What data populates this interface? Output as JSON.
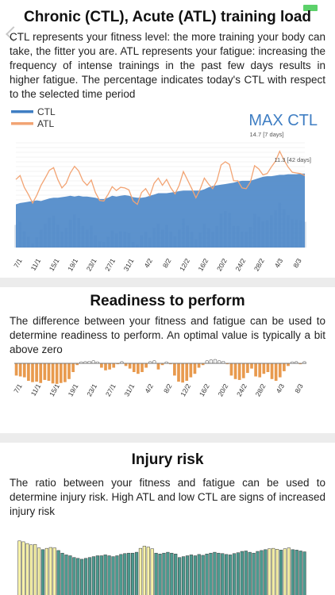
{
  "load_section": {
    "title": "Chronic (CTL), Acute (ATL) training load",
    "description": "CTL represents your fitness level: the more training your body can take, the fitter you are. ATL represents your fatigue: increasing the frequency of intense trainings in the past few days results in higher fatigue. The percentage indicates today's CTL with respect to the selected time period",
    "legend": [
      {
        "label": "CTL",
        "color": "#3f7ec3"
      },
      {
        "label": "ATL",
        "color": "#f2a474"
      }
    ],
    "max_label": "MAX CTL",
    "annotations": [
      "14.7 [7 days]",
      "11.3 [42 days]"
    ]
  },
  "readiness_section": {
    "title": "Readiness to perform",
    "description": "The difference between your fitness and fatigue can be used to determine readiness to perform. An optimal value is typically a bit above zero"
  },
  "injury_section": {
    "title": "Injury risk",
    "description": "The ratio between your fitness and fatigue can be used to determine injury risk. High ATL and low CTL are signs of increased injury risk"
  },
  "colors": {
    "ctl_fill": "#4a86c8",
    "atl_line": "#f2a474",
    "readiness_negative": "#e89a4e",
    "readiness_positive": "#ffffff",
    "injury_high": "#f7f2a8",
    "injury_normal": "#4c9a8f"
  },
  "chart_data": [
    {
      "type": "area",
      "x_tick_labels": [
        "7/1",
        "11/1",
        "15/1",
        "19/1",
        "23/1",
        "27/1",
        "31/1",
        "4/2",
        "8/2",
        "12/2",
        "16/2",
        "20/2",
        "24/2",
        "28/2",
        "4/3",
        "8/3"
      ],
      "series": [
        {
          "name": "CTL",
          "values": [
            6.6,
            6.8,
            6.9,
            7.0,
            7.1,
            7.2,
            7.1,
            7.3,
            7.5,
            7.6,
            7.6,
            7.7,
            7.8,
            7.9,
            7.8,
            7.9,
            7.8,
            7.8,
            7.7,
            7.6,
            7.4,
            7.4,
            7.6,
            7.9,
            7.8,
            7.9,
            8.0,
            7.9,
            7.7,
            7.6,
            7.6,
            7.7,
            7.9,
            8.1,
            8.3,
            8.3,
            8.3,
            8.4,
            8.5,
            8.6,
            8.7,
            8.7,
            8.7,
            8.7,
            8.7,
            8.9,
            9.2,
            9.4,
            9.5,
            9.6,
            9.7,
            9.8,
            9.9,
            10.1,
            10.2,
            10.2,
            10.2,
            10.4,
            10.6,
            10.8,
            10.9,
            10.9,
            11.0,
            11.1,
            11.1,
            11.2,
            11.2,
            11.2,
            11.3,
            11.3
          ]
        },
        {
          "name": "ATL",
          "values": [
            10.4,
            11.0,
            9.2,
            8.1,
            6.8,
            8.0,
            9.5,
            10.6,
            11.8,
            12.2,
            10.4,
            9.1,
            9.8,
            11.4,
            12.4,
            11.7,
            10.2,
            9.5,
            10.3,
            8.4,
            7.2,
            7.1,
            8.1,
            9.3,
            8.7,
            9.2,
            9.1,
            8.8,
            7.1,
            6.6,
            8.4,
            9.0,
            7.9,
            9.8,
            10.6,
            9.5,
            10.4,
            9.1,
            8.2,
            9.5,
            11.6,
            10.3,
            9.0,
            7.6,
            8.9,
            10.6,
            9.7,
            9.0,
            10.2,
            12.6,
            13.1,
            12.7,
            10.2,
            10.2,
            9.1,
            9.0,
            10.0,
            12.5,
            12.0,
            11.1,
            11.3,
            12.3,
            13.2,
            14.7,
            13.4,
            12.3,
            11.5,
            11.4,
            11.3,
            11.0
          ]
        }
      ]
    },
    {
      "type": "bar",
      "x_tick_labels": [
        "7/1",
        "11/1",
        "15/1",
        "19/1",
        "23/1",
        "27/1",
        "31/1",
        "4/2",
        "8/2",
        "12/2",
        "16/2",
        "20/2",
        "24/2",
        "28/2",
        "4/3",
        "8/3"
      ],
      "series": [
        {
          "name": "",
          "values": [
            -0.28,
            -0.3,
            -0.32,
            -0.4,
            -0.43,
            -0.42,
            -0.45,
            -0.38,
            -0.4,
            -0.46,
            -0.47,
            -0.45,
            -0.43,
            -0.36,
            -0.2,
            -0.04,
            0.01,
            0.04,
            0.05,
            0.06,
            0.02,
            -0.1,
            -0.16,
            -0.14,
            -0.1,
            -0.02,
            0.04,
            -0.06,
            -0.12,
            -0.2,
            -0.24,
            -0.2,
            -0.1,
            0.04,
            0.06,
            -0.14,
            -0.04,
            0.03,
            -0.02,
            -0.28,
            -0.42,
            -0.44,
            -0.4,
            -0.32,
            -0.24,
            -0.1,
            -0.04,
            0.06,
            0.08,
            0.09,
            0.06,
            0.05,
            -0.02,
            -0.28,
            -0.36,
            -0.38,
            -0.34,
            -0.22,
            -0.12,
            -0.3,
            -0.32,
            -0.24,
            -0.2,
            -0.36,
            -0.4,
            -0.32,
            -0.18,
            -0.06,
            0.03,
            0.04,
            -0.02,
            0.04
          ]
        }
      ]
    },
    {
      "type": "bar",
      "series": [
        {
          "name": "",
          "values": [
            1.24,
            1.22,
            1.18,
            1.15,
            1.16,
            1.08,
            1.04,
            1.07,
            1.09,
            1.08,
            1.02,
            0.96,
            0.92,
            0.9,
            0.86,
            0.84,
            0.82,
            0.84,
            0.86,
            0.88,
            0.9,
            0.9,
            0.92,
            0.9,
            0.88,
            0.9,
            0.93,
            0.95,
            0.96,
            0.96,
            0.98,
            1.07,
            1.12,
            1.1,
            1.06,
            0.96,
            0.94,
            0.96,
            0.98,
            0.96,
            0.94,
            0.86,
            0.88,
            0.9,
            0.92,
            0.9,
            0.93,
            0.91,
            0.94,
            0.96,
            0.98,
            0.96,
            0.95,
            0.93,
            0.92,
            0.95,
            0.97,
            1.0,
            1.01,
            0.98,
            0.96,
            1.0,
            1.02,
            1.04,
            1.06,
            1.07,
            1.05,
            1.03,
            1.06,
            1.08,
            1.04,
            1.03,
            1.01,
            0.99
          ]
        }
      ]
    }
  ]
}
